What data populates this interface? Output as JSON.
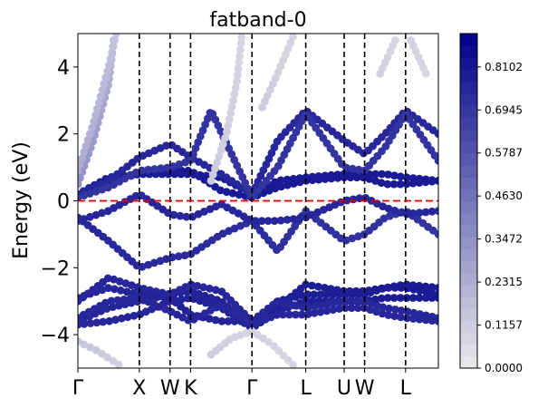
{
  "chart_data": {
    "type": "scatter",
    "title": "fatband-0",
    "ylabel": "Energy (eV)",
    "xlabel": "",
    "ylim": [
      -5,
      5
    ],
    "xlim": [
      0,
      7.04
    ],
    "yticks": [
      {
        "value": 4,
        "label": "4"
      },
      {
        "value": 2,
        "label": "2"
      },
      {
        "value": 0,
        "label": "0"
      },
      {
        "value": -2,
        "label": "−2"
      },
      {
        "value": -4,
        "label": "−4"
      }
    ],
    "kpoints": [
      {
        "label": "Γ",
        "x": 0
      },
      {
        "label": "X",
        "x": 1.2
      },
      {
        "label": "W",
        "x": 1.8
      },
      {
        "label": "K",
        "x": 2.2
      },
      {
        "label": "Γ",
        "x": 3.4
      },
      {
        "label": "L",
        "x": 4.45
      },
      {
        "label": "U",
        "x": 5.2
      },
      {
        "label": "W",
        "x": 5.6
      },
      {
        "label": "L",
        "x": 6.4
      }
    ],
    "fermi_level": 0,
    "colors": {
      "fermi_line": "#dd0000",
      "kpath_line": "#000000",
      "cmap_low": "#ebebeb",
      "cmap_high": "#00008b"
    },
    "colorbar": {
      "min": 0,
      "max": 0.9,
      "ticks": [
        {
          "value": 0.0,
          "label": "0.0000"
        },
        {
          "value": 0.1157,
          "label": "0.1157"
        },
        {
          "value": 0.2315,
          "label": "0.2315"
        },
        {
          "value": 0.3472,
          "label": "0.3472"
        },
        {
          "value": 0.463,
          "label": "0.4630"
        },
        {
          "value": 0.5787,
          "label": "0.5787"
        },
        {
          "value": 0.6945,
          "label": "0.6945"
        },
        {
          "value": 0.8102,
          "label": "0.8102"
        }
      ]
    },
    "bands": [
      {
        "name": "",
        "weight_start": 0.75,
        "weight_end": 0.8,
        "points": [
          [
            0,
            -3.7
          ],
          [
            0.6,
            -3.6
          ],
          [
            1.2,
            -3.4
          ],
          [
            1.8,
            -3.0
          ],
          [
            2.2,
            -2.9
          ],
          [
            2.8,
            -3.2
          ],
          [
            3.4,
            -3.8
          ],
          [
            3.9,
            -3.3
          ],
          [
            4.45,
            -3.0
          ],
          [
            5.2,
            -3.0
          ],
          [
            5.6,
            -3.0
          ],
          [
            6.0,
            -2.9
          ],
          [
            6.4,
            -2.9
          ],
          [
            7.04,
            -2.9
          ]
        ]
      },
      {
        "name": "",
        "weight_start": 0.75,
        "weight_end": 0.8,
        "points": [
          [
            0,
            -3.6
          ],
          [
            0.6,
            -3.2
          ],
          [
            1.2,
            -3.0
          ],
          [
            1.8,
            -2.8
          ],
          [
            2.2,
            -2.7
          ],
          [
            2.8,
            -3.0
          ],
          [
            3.4,
            -3.8
          ],
          [
            3.9,
            -3.0
          ],
          [
            4.45,
            -2.8
          ],
          [
            5.2,
            -2.8
          ],
          [
            5.6,
            -2.8
          ],
          [
            6.0,
            -2.6
          ],
          [
            6.4,
            -2.6
          ],
          [
            7.04,
            -2.8
          ]
        ]
      },
      {
        "name": "",
        "weight_start": 0.75,
        "weight_end": 0.8,
        "points": [
          [
            0,
            -2.9
          ],
          [
            0.6,
            -2.6
          ],
          [
            1.2,
            -2.8
          ],
          [
            1.8,
            -2.9
          ],
          [
            2.2,
            -3.4
          ],
          [
            2.8,
            -3.6
          ],
          [
            3.4,
            -3.6
          ],
          [
            3.9,
            -3.2
          ],
          [
            4.45,
            -2.5
          ],
          [
            5.2,
            -2.7
          ],
          [
            5.6,
            -2.7
          ],
          [
            6.0,
            -2.6
          ],
          [
            6.4,
            -2.5
          ],
          [
            7.04,
            -2.6
          ]
        ]
      },
      {
        "name": "",
        "weight_start": 0.75,
        "weight_end": 0.75,
        "points": [
          [
            0,
            -3.0
          ],
          [
            0.6,
            -2.3
          ],
          [
            1.2,
            -2.6
          ],
          [
            1.8,
            -2.8
          ],
          [
            2.2,
            -2.5
          ],
          [
            2.8,
            -2.7
          ],
          [
            3.4,
            -3.6
          ],
          [
            3.9,
            -3.0
          ],
          [
            4.45,
            -3.2
          ],
          [
            5.2,
            -3.0
          ],
          [
            5.6,
            -3.0
          ],
          [
            6.0,
            -3.2
          ],
          [
            6.4,
            -3.3
          ],
          [
            7.04,
            -3.5
          ]
        ]
      },
      {
        "name": "",
        "weight_start": 0.75,
        "weight_end": 0.75,
        "points": [
          [
            0,
            -3.5
          ],
          [
            0.6,
            -3.0
          ],
          [
            1.2,
            -2.9
          ],
          [
            1.8,
            -3.3
          ],
          [
            2.2,
            -3.6
          ],
          [
            2.8,
            -3.1
          ],
          [
            3.4,
            -3.7
          ],
          [
            3.9,
            -3.4
          ],
          [
            4.45,
            -3.4
          ],
          [
            5.2,
            -3.2
          ],
          [
            5.6,
            -3.2
          ],
          [
            6.0,
            -3.4
          ],
          [
            6.4,
            -3.5
          ],
          [
            7.04,
            -3.6
          ]
        ]
      },
      {
        "name": "",
        "weight_start": 0.75,
        "weight_end": 0.7,
        "points": [
          [
            0,
            -0.5
          ],
          [
            0.6,
            -1.2
          ],
          [
            1.2,
            -2.0
          ],
          [
            1.8,
            -1.7
          ],
          [
            2.2,
            -1.6
          ],
          [
            2.8,
            -1.0
          ],
          [
            3.4,
            -0.6
          ],
          [
            3.9,
            -1.5
          ],
          [
            4.45,
            -0.3
          ],
          [
            5.2,
            -1.2
          ],
          [
            5.6,
            -1.0
          ],
          [
            6.0,
            -0.5
          ],
          [
            6.4,
            -0.3
          ],
          [
            7.04,
            -1.0
          ]
        ]
      },
      {
        "name": "",
        "weight_start": 0.75,
        "weight_end": 0.75,
        "points": [
          [
            0,
            -0.6
          ],
          [
            0.6,
            -0.3
          ],
          [
            1.2,
            0.2
          ],
          [
            1.8,
            -0.4
          ],
          [
            2.2,
            -0.5
          ],
          [
            2.8,
            -0.1
          ],
          [
            3.4,
            -0.6
          ],
          [
            3.9,
            -0.6
          ],
          [
            4.45,
            -0.5
          ],
          [
            5.2,
            0.0
          ],
          [
            5.6,
            0.1
          ],
          [
            6.0,
            -0.2
          ],
          [
            6.4,
            -0.4
          ],
          [
            7.04,
            -0.3
          ]
        ]
      },
      {
        "name": "",
        "weight_start": 0.8,
        "weight_end": 0.8,
        "points": [
          [
            0,
            0.15
          ],
          [
            0.6,
            0.6
          ],
          [
            1.2,
            0.8
          ],
          [
            1.8,
            0.9
          ],
          [
            2.2,
            0.9
          ],
          [
            2.8,
            0.3
          ],
          [
            3.4,
            0.1
          ],
          [
            3.9,
            0.4
          ],
          [
            4.45,
            0.6
          ],
          [
            5.2,
            0.7
          ],
          [
            5.6,
            0.7
          ],
          [
            6.0,
            0.5
          ],
          [
            6.4,
            0.5
          ],
          [
            7.04,
            0.6
          ]
        ]
      },
      {
        "name": "",
        "weight_start": 0.8,
        "weight_end": 0.8,
        "points": [
          [
            0,
            0.2
          ],
          [
            0.6,
            0.7
          ],
          [
            1.2,
            0.8
          ],
          [
            1.8,
            0.8
          ],
          [
            2.2,
            0.8
          ],
          [
            2.8,
            0.7
          ],
          [
            3.4,
            0.2
          ],
          [
            3.9,
            0.6
          ],
          [
            4.45,
            0.7
          ],
          [
            5.2,
            0.8
          ],
          [
            5.6,
            0.8
          ],
          [
            6.0,
            0.8
          ],
          [
            6.4,
            0.7
          ],
          [
            7.04,
            0.6
          ]
        ]
      },
      {
        "name": "",
        "weight_start": 0.75,
        "weight_end": 0.75,
        "points": [
          [
            0,
            0.2
          ],
          [
            0.6,
            0.6
          ],
          [
            1.2,
            1.3
          ],
          [
            1.8,
            1.7
          ],
          [
            2.2,
            1.3
          ],
          [
            2.8,
            0.8
          ],
          [
            3.4,
            0.2
          ],
          [
            3.9,
            1.8
          ],
          [
            4.45,
            2.7
          ],
          [
            5.2,
            1.8
          ],
          [
            5.6,
            1.4
          ],
          [
            6.0,
            2.0
          ],
          [
            6.4,
            2.7
          ],
          [
            7.04,
            2.0
          ]
        ]
      },
      {
        "name": "",
        "weight_start": 0.7,
        "weight_end": 0.7,
        "points": [
          [
            0,
            0.1
          ],
          [
            0.6,
            0.4
          ],
          [
            1.2,
            0.9
          ],
          [
            1.8,
            1.0
          ],
          [
            2.2,
            1.2
          ],
          [
            2.6,
            2.7
          ],
          [
            3.4,
            0.1
          ],
          [
            3.9,
            1.0
          ],
          [
            4.45,
            2.6
          ],
          [
            5.2,
            1.0
          ],
          [
            5.6,
            0.9
          ],
          [
            6.0,
            1.6
          ],
          [
            6.4,
            2.6
          ],
          [
            7.04,
            1.2
          ]
        ]
      },
      {
        "name": "",
        "weight_start": 0.35,
        "weight_end": 0.2,
        "points": [
          [
            0,
            0.5
          ],
          [
            0.3,
            1.8
          ],
          [
            0.6,
            3.5
          ],
          [
            0.7,
            4.8
          ]
        ]
      },
      {
        "name": "",
        "weight_start": 0.25,
        "weight_end": 0.15,
        "points": [
          [
            0,
            0.9
          ],
          [
            0.3,
            2.3
          ],
          [
            0.6,
            4.0
          ],
          [
            0.75,
            5.0
          ]
        ]
      },
      {
        "name": "",
        "weight_start": 0.12,
        "weight_end": 0.08,
        "points": [
          [
            2.6,
            0.6
          ],
          [
            2.9,
            2.0
          ],
          [
            3.1,
            3.5
          ],
          [
            3.2,
            4.9
          ]
        ]
      },
      {
        "name": "",
        "weight_start": 0.12,
        "weight_end": 0.08,
        "points": [
          [
            3.6,
            2.8
          ],
          [
            3.9,
            3.8
          ],
          [
            4.2,
            4.9
          ]
        ]
      },
      {
        "name": "",
        "weight_start": 0.1,
        "weight_end": 0.08,
        "points": [
          [
            5.9,
            3.8
          ],
          [
            6.2,
            4.8
          ]
        ]
      },
      {
        "name": "",
        "weight_start": 0.1,
        "weight_end": 0.08,
        "points": [
          [
            6.5,
            4.8
          ],
          [
            6.8,
            3.8
          ]
        ]
      },
      {
        "name": "",
        "weight_start": 0.15,
        "weight_end": 0.1,
        "points": [
          [
            0,
            -4.2
          ],
          [
            0.4,
            -4.5
          ],
          [
            0.8,
            -4.9
          ]
        ]
      },
      {
        "name": "",
        "weight_start": 0.12,
        "weight_end": 0.08,
        "points": [
          [
            2.6,
            -4.6
          ],
          [
            3.0,
            -4.1
          ],
          [
            3.4,
            -3.9
          ]
        ]
      },
      {
        "name": "",
        "weight_start": 0.1,
        "weight_end": 0.08,
        "points": [
          [
            3.4,
            -3.9
          ],
          [
            3.8,
            -4.3
          ],
          [
            4.2,
            -4.9
          ]
        ]
      }
    ]
  }
}
